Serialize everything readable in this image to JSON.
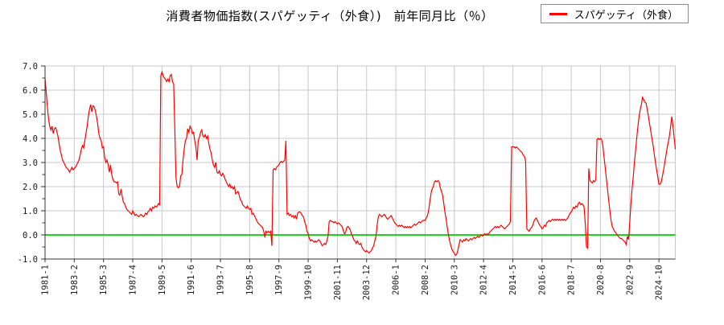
{
  "header": {
    "title": "消費者物価指数(スパゲッティ（外食）)　前年同月比（％）"
  },
  "legend": {
    "label": "スパゲッティ（外食）",
    "series_color": "#ff0000"
  },
  "chart_data": {
    "type": "line",
    "title": "消費者物価指数(スパゲッティ（外食）) 前年同月比（％）",
    "xlabel": "",
    "ylabel": "",
    "ylim": [
      -1.0,
      7.0
    ],
    "y_major_step": 1.0,
    "y_minor_step": 0.5,
    "y_tick_labels": [
      "7.0",
      "6.0",
      "5.0",
      "4.0",
      "3.0",
      "2.0",
      "1.0",
      "0.0",
      "-1.0"
    ],
    "x_tick_labels": [
      "1981-1",
      "1983-2",
      "1985-3",
      "1987-4",
      "1989-5",
      "1991-6",
      "1993-7",
      "1995-8",
      "1997-9",
      "1999-10",
      "2001-11",
      "2003-12",
      "2006-1",
      "2008-2",
      "2010-3",
      "2012-4",
      "2014-5",
      "2016-6",
      "2018-7",
      "2020-8",
      "2022-9",
      "2024-10"
    ],
    "x_tick_interval_months": 25,
    "grid": true,
    "grid_color": "#c9c9c9",
    "axis_color": "#333333",
    "zero_line_color": "#00cc00",
    "legend_position": "top-right",
    "series_name": "スパゲッティ（外食）",
    "series_color": "#ff0000",
    "start_year": 1981,
    "monthly_values": [
      [
        6.5,
        5.9,
        5.3,
        4.8,
        4.5,
        4.35,
        4.5,
        4.2,
        4.4,
        4.45,
        4.3,
        4.1
      ],
      [
        3.8,
        3.5,
        3.3,
        3.1,
        3.0,
        2.9,
        2.8,
        2.75,
        2.7,
        2.6,
        2.7,
        2.8
      ],
      [
        2.7,
        2.75,
        2.8,
        2.9,
        3.0,
        3.1,
        3.3,
        3.55,
        3.7,
        3.6,
        3.9,
        4.2
      ],
      [
        4.5,
        4.9,
        5.2,
        5.4,
        5.1,
        5.35,
        5.3,
        5.15,
        4.9,
        4.6,
        4.2,
        4.0
      ],
      [
        3.9,
        3.6,
        3.65,
        3.2,
        3.0,
        3.1,
        2.9,
        2.6,
        2.9,
        2.5,
        2.3,
        2.2
      ],
      [
        2.2,
        2.15,
        2.2,
        1.7,
        1.65,
        1.9,
        1.6,
        1.35,
        1.3,
        1.15,
        1.05,
        1.0
      ],
      [
        0.95,
        0.9,
        0.85,
        1.0,
        0.9,
        0.8,
        0.85,
        0.8,
        0.75,
        0.8,
        0.85,
        0.8
      ],
      [
        0.75,
        0.8,
        0.9,
        0.85,
        0.95,
        1.0,
        1.1,
        1.0,
        1.15,
        1.1,
        1.2,
        1.15
      ],
      [
        1.2,
        1.3,
        1.25,
        6.6,
        6.75,
        6.6,
        6.5,
        6.45,
        6.35,
        6.45,
        6.35,
        6.6
      ],
      [
        6.65,
        6.35,
        6.25,
        4.25,
        2.35,
        2.0,
        1.95,
        2.0,
        2.45,
        2.5,
        3.1,
        3.55
      ],
      [
        3.9,
        4.0,
        4.4,
        4.25,
        4.5,
        4.4,
        4.2,
        4.25,
        3.9,
        3.65,
        3.1,
        3.9
      ],
      [
        4.05,
        4.25,
        4.35,
        4.1,
        4.05,
        4.15,
        4.0,
        4.1,
        3.8,
        3.55,
        3.4,
        3.1
      ],
      [
        2.9,
        2.8,
        3.0,
        2.6,
        2.55,
        2.65,
        2.5,
        2.45,
        2.55,
        2.45,
        2.3,
        2.2
      ],
      [
        2.1,
        2.0,
        2.1,
        1.95,
        2.0,
        1.9,
        2.0,
        1.7,
        1.75,
        1.8,
        1.65,
        1.45
      ],
      [
        1.4,
        1.25,
        1.2,
        1.15,
        1.1,
        1.2,
        1.1,
        1.05,
        1.1,
        0.85,
        0.9,
        0.8
      ],
      [
        0.7,
        0.6,
        0.5,
        0.45,
        0.4,
        0.35,
        0.3,
        0.15,
        -0.1,
        0.15,
        0.1,
        0.15
      ],
      [
        0.1,
        0.15,
        -0.45,
        2.7,
        2.75,
        2.7,
        2.8,
        2.85,
        2.9,
        3.0,
        3.05,
        3.0
      ],
      [
        3.05,
        3.1,
        3.9,
        0.85,
        0.9,
        0.8,
        0.85,
        0.75,
        0.8,
        0.7,
        0.8,
        0.65
      ],
      [
        0.9,
        0.95,
        0.95,
        0.9,
        0.8,
        0.75,
        0.55,
        0.4,
        0.15,
        0.05,
        -0.15,
        -0.25
      ],
      [
        -0.2,
        -0.25,
        -0.3,
        -0.25,
        -0.3,
        -0.25,
        -0.2,
        -0.25,
        -0.35,
        -0.45,
        -0.4,
        -0.35
      ],
      [
        -0.4,
        -0.25,
        -0.05,
        0.55,
        0.6,
        0.55,
        0.55,
        0.5,
        0.55,
        0.5,
        0.45,
        0.5
      ],
      [
        0.45,
        0.4,
        0.35,
        0.2,
        0.05,
        0.1,
        0.3,
        0.35,
        0.3,
        0.2,
        0.05,
        -0.05
      ],
      [
        -0.2,
        -0.25,
        -0.35,
        -0.25,
        -0.35,
        -0.4,
        -0.35,
        -0.5,
        -0.6,
        -0.65,
        -0.7,
        -0.65
      ],
      [
        -0.7,
        -0.75,
        -0.7,
        -0.65,
        -0.55,
        -0.45,
        -0.25,
        -0.05,
        0.4,
        0.75,
        0.85,
        0.8
      ],
      [
        0.75,
        0.8,
        0.85,
        0.8,
        0.7,
        0.65,
        0.7,
        0.75,
        0.8,
        0.7,
        0.6,
        0.5
      ],
      [
        0.45,
        0.4,
        0.35,
        0.4,
        0.35,
        0.4,
        0.35,
        0.3,
        0.35,
        0.3,
        0.35,
        0.3
      ],
      [
        0.35,
        0.3,
        0.35,
        0.4,
        0.45,
        0.4,
        0.45,
        0.5,
        0.55,
        0.5,
        0.55,
        0.6
      ],
      [
        0.6,
        0.6,
        0.7,
        0.8,
        1.0,
        1.35,
        1.7,
        1.9,
        2.0,
        2.2,
        2.25,
        2.2
      ],
      [
        2.25,
        2.2,
        1.95,
        1.8,
        1.65,
        1.3,
        0.95,
        0.65,
        0.3,
        0.0,
        -0.25,
        -0.45
      ],
      [
        -0.6,
        -0.7,
        -0.75,
        -0.85,
        -0.8,
        -0.65,
        -0.4,
        -0.2,
        -0.25,
        -0.3,
        -0.2,
        -0.25
      ],
      [
        -0.15,
        -0.2,
        -0.25,
        -0.2,
        -0.15,
        -0.2,
        -0.15,
        -0.1,
        -0.15,
        -0.1,
        -0.05,
        -0.1
      ],
      [
        -0.05,
        0.0,
        -0.05,
        0.0,
        0.05,
        0.0,
        0.05,
        0.0,
        0.1,
        0.15,
        0.2,
        0.25
      ],
      [
        0.3,
        0.35,
        0.3,
        0.35,
        0.3,
        0.35,
        0.4,
        0.35,
        0.3,
        0.25,
        0.3,
        0.35
      ],
      [
        0.4,
        0.45,
        0.55,
        3.65,
        3.65,
        3.65,
        3.6,
        3.65,
        3.6,
        3.55,
        3.5,
        3.45
      ],
      [
        3.4,
        3.3,
        3.25,
        3.05,
        0.25,
        0.2,
        0.15,
        0.25,
        0.3,
        0.4,
        0.55,
        0.65
      ],
      [
        0.7,
        0.6,
        0.5,
        0.4,
        0.35,
        0.25,
        0.3,
        0.4,
        0.35,
        0.5,
        0.55,
        0.6
      ],
      [
        0.55,
        0.6,
        0.65,
        0.6,
        0.65,
        0.6,
        0.65,
        0.6,
        0.65,
        0.6,
        0.65,
        0.6
      ],
      [
        0.65,
        0.6,
        0.65,
        0.7,
        0.8,
        0.9,
        0.95,
        1.05,
        1.15,
        1.1,
        1.2,
        1.15
      ],
      [
        1.3,
        1.35,
        1.25,
        1.3,
        1.25,
        1.15,
        0.45,
        -0.5,
        -0.55,
        2.75,
        2.25,
        2.2
      ],
      [
        2.15,
        2.25,
        2.2,
        2.3,
        3.95,
        4.0,
        3.95,
        4.0,
        3.95,
        3.7,
        3.25,
        2.8
      ],
      [
        2.35,
        1.9,
        1.45,
        1.0,
        0.6,
        0.35,
        0.25,
        0.15,
        0.1,
        0.0,
        -0.05,
        -0.1
      ],
      [
        -0.15,
        -0.15,
        -0.2,
        -0.25,
        -0.3,
        -0.4,
        -0.05,
        -0.2,
        0.5,
        1.3,
        1.9,
        2.4
      ],
      [
        3.0,
        3.5,
        4.0,
        4.5,
        4.9,
        5.2,
        5.4,
        5.7,
        5.6,
        5.5,
        5.45,
        5.2
      ],
      [
        4.9,
        4.6,
        4.3,
        4.0,
        3.7,
        3.35,
        3.0,
        2.7,
        2.4,
        2.1,
        2.1,
        2.2
      ],
      [
        2.45,
        2.7,
        3.0,
        3.3,
        3.6,
        3.85,
        4.1,
        4.5,
        4.9,
        4.5,
        4.05,
        3.55
      ]
    ]
  }
}
